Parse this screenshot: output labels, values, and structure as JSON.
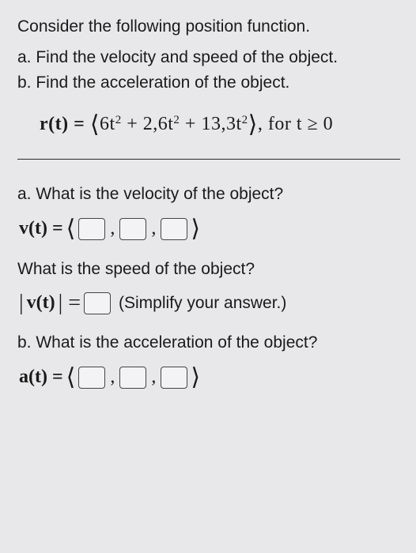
{
  "intro": "Consider the following position function.",
  "part_a": "a. Find the velocity and speed of the object.",
  "part_b": "b. Find the acceleration of the object.",
  "formula": {
    "lhs": "r(t) =",
    "term1_coef": "6t",
    "term1_exp": "2",
    "plus1": " + ",
    "term2_a": "2,6t",
    "term2_exp": "2",
    "plus2": " + ",
    "term3_a": "13,3t",
    "term3_exp": "2",
    "domain": ", for t ≥ 0"
  },
  "qa": {
    "velocity_q": "a. What is the velocity of the object?",
    "velocity_lhs": "v(t) =",
    "speed_q": "What is the speed of the object?",
    "speed_lhs_l": "|",
    "speed_lhs_mid": "v(t)",
    "speed_lhs_r": "| =",
    "simplify": "(Simplify your answer.)",
    "accel_q": "b. What is the acceleration of the object?",
    "accel_lhs": "a(t) ="
  },
  "glyphs": {
    "angle_l": "⟨",
    "angle_r": "⟩"
  },
  "colors": {
    "background": "#e8e8ea",
    "text": "#1a1a1a",
    "box_border": "#444",
    "box_fill": "#f3f3f5",
    "divider": "#2a2a2a"
  },
  "font_sizes_pt": {
    "body": 16,
    "formula": 18,
    "superscript": 11
  }
}
